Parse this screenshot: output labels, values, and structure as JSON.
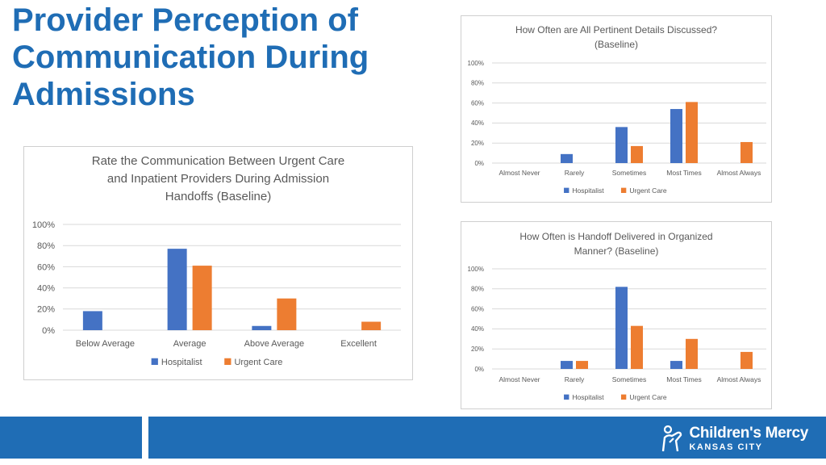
{
  "slide": {
    "title_lines": [
      "Provider Perception of",
      "Communication During",
      "Admissions"
    ]
  },
  "colors": {
    "title": "#1F6DB5",
    "hospitalist": "#4472C4",
    "urgent_care": "#ED7D31",
    "footer": "#1F6DB5"
  },
  "footer": {
    "brand_name": "Children's Mercy",
    "brand_sub": "KANSAS CITY",
    "logo_icon": "childrens-mercy-logo-icon"
  },
  "chart_data": [
    {
      "id": "rate",
      "type": "bar",
      "title_lines": [
        "Rate the Communication Between Urgent Care",
        "and Inpatient Providers During Admission",
        "Handoffs (Baseline)"
      ],
      "categories": [
        "Below Average",
        "Average",
        "Above Average",
        "Excellent"
      ],
      "series": [
        {
          "name": "Hospitalist",
          "values": [
            18,
            77,
            4,
            0
          ]
        },
        {
          "name": "Urgent Care",
          "values": [
            0,
            61,
            30,
            8
          ]
        }
      ],
      "yticks": [
        "0%",
        "20%",
        "40%",
        "60%",
        "80%",
        "100%"
      ],
      "ylim": [
        0,
        100
      ],
      "legend": "bottom",
      "grid": true
    },
    {
      "id": "details",
      "type": "bar",
      "title_lines": [
        "How Often are All Pertinent Details Discussed?",
        "(Baseline)"
      ],
      "categories": [
        "Almost Never",
        "Rarely",
        "Sometimes",
        "Most Times",
        "Almost Always"
      ],
      "series": [
        {
          "name": "Hospitalist",
          "values": [
            0,
            9,
            36,
            54,
            0
          ]
        },
        {
          "name": "Urgent Care",
          "values": [
            0,
            0,
            17,
            61,
            21
          ]
        }
      ],
      "yticks": [
        "0%",
        "20%",
        "40%",
        "60%",
        "80%",
        "100%"
      ],
      "ylim": [
        0,
        100
      ],
      "legend": "bottom",
      "grid": true
    },
    {
      "id": "organized",
      "type": "bar",
      "title_lines": [
        "How Often is Handoff Delivered in Organized",
        "Manner? (Baseline)"
      ],
      "categories": [
        "Almost Never",
        "Rarely",
        "Sometimes",
        "Most Times",
        "Almost Always"
      ],
      "series": [
        {
          "name": "Hospitalist",
          "values": [
            0,
            8,
            82,
            8,
            0
          ]
        },
        {
          "name": "Urgent Care",
          "values": [
            0,
            8,
            43,
            30,
            17
          ]
        }
      ],
      "yticks": [
        "0%",
        "20%",
        "40%",
        "60%",
        "80%",
        "100%"
      ],
      "ylim": [
        0,
        100
      ],
      "legend": "bottom",
      "grid": true
    }
  ]
}
